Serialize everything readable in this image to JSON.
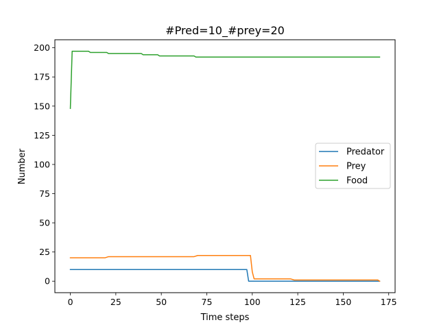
{
  "chart_data": {
    "type": "line",
    "title": "#Pred=10_#prey=20",
    "xlabel": "Time steps",
    "ylabel": "Number",
    "xlim": [
      -8.5,
      178.5
    ],
    "ylim": [
      -9.85,
      206.85
    ],
    "xticks": [
      0,
      25,
      50,
      75,
      100,
      125,
      150,
      175
    ],
    "yticks": [
      0,
      25,
      50,
      75,
      100,
      125,
      150,
      175,
      200
    ],
    "grid": false,
    "legend_position": "center-right",
    "series": [
      {
        "name": "Predator",
        "color": "#1f77b4",
        "points": [
          [
            0,
            10
          ],
          [
            97,
            10
          ],
          [
            98,
            0
          ],
          [
            170,
            0
          ]
        ]
      },
      {
        "name": "Prey",
        "color": "#ff7f0e",
        "points": [
          [
            0,
            20
          ],
          [
            19,
            20
          ],
          [
            21,
            21
          ],
          [
            68,
            21
          ],
          [
            70,
            22
          ],
          [
            99,
            22
          ],
          [
            100,
            8
          ],
          [
            101,
            2
          ],
          [
            121,
            2
          ],
          [
            123,
            1
          ],
          [
            169,
            1
          ],
          [
            170,
            0
          ]
        ]
      },
      {
        "name": "Food",
        "color": "#2ca02c",
        "points": [
          [
            0,
            148
          ],
          [
            1,
            197
          ],
          [
            10,
            197
          ],
          [
            11,
            196
          ],
          [
            20,
            196
          ],
          [
            21,
            195
          ],
          [
            39,
            195
          ],
          [
            40,
            194
          ],
          [
            48,
            194
          ],
          [
            49,
            193
          ],
          [
            68,
            193
          ],
          [
            69,
            192
          ],
          [
            170,
            192
          ]
        ]
      }
    ]
  }
}
